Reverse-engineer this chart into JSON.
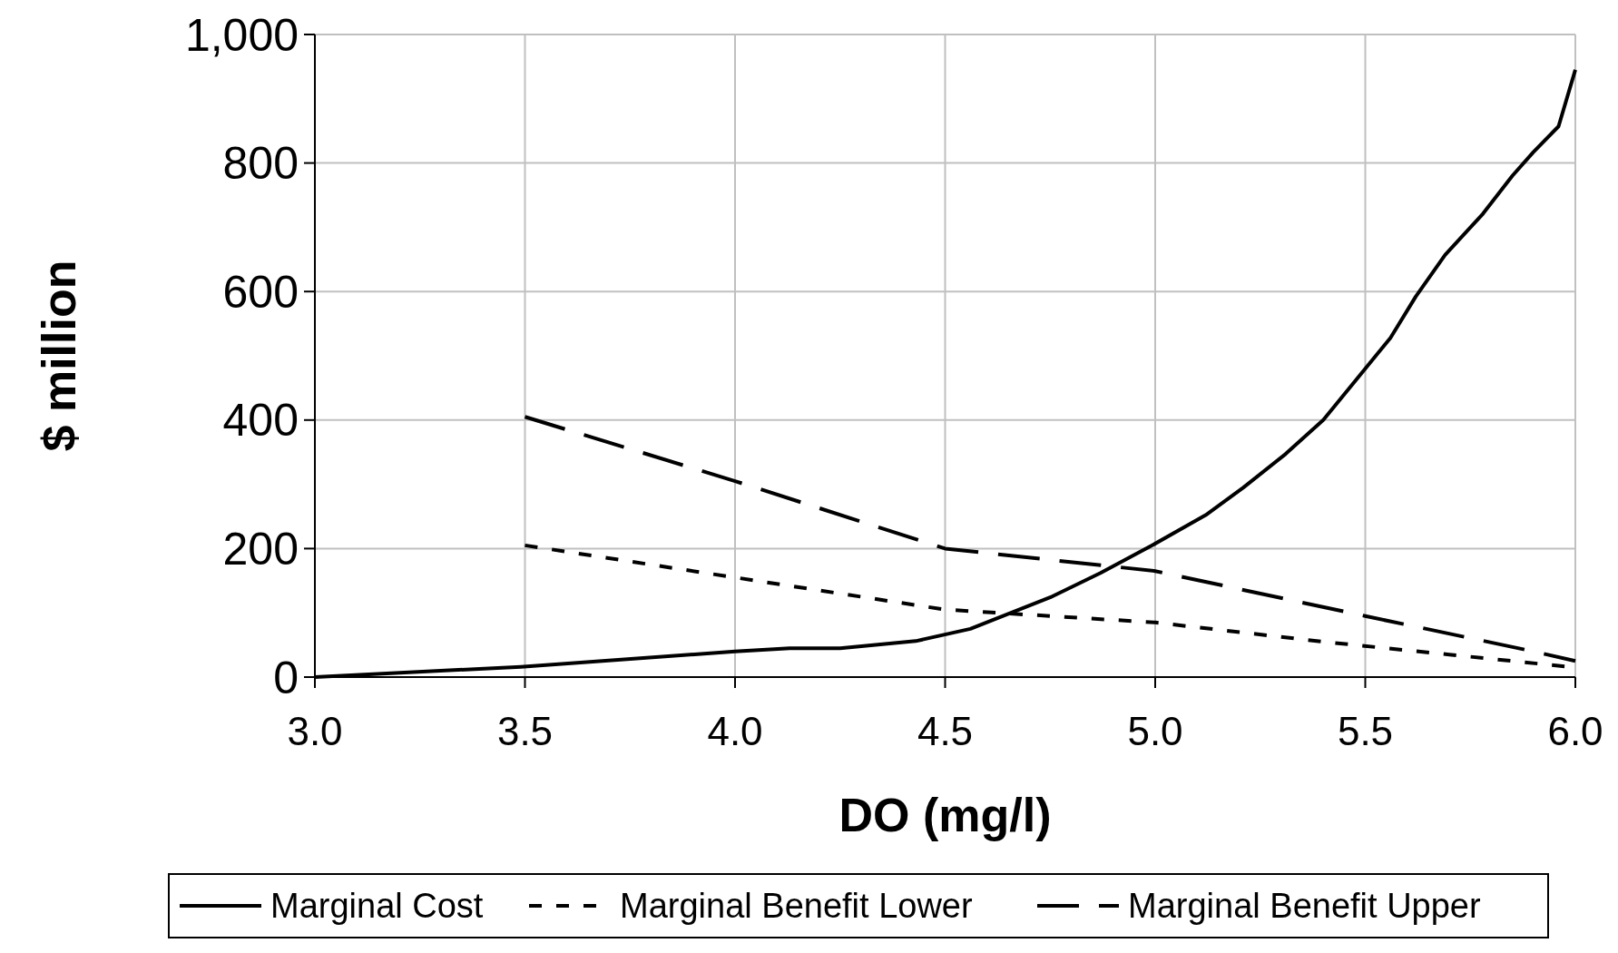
{
  "chart_data": {
    "type": "line",
    "xlabel": "DO (mg/l)",
    "ylabel": "$ million",
    "xlim": [
      3,
      6
    ],
    "ylim": [
      0,
      1000
    ],
    "xticks": [
      {
        "value": 3,
        "label": "3.0"
      },
      {
        "value": 3.5,
        "label": "3.5"
      },
      {
        "value": 4,
        "label": "4.0"
      },
      {
        "value": 4.5,
        "label": "4.5"
      },
      {
        "value": 5,
        "label": "5.0"
      },
      {
        "value": 5.5,
        "label": "5.5"
      },
      {
        "value": 6,
        "label": "6.0"
      }
    ],
    "yticks": [
      0,
      200,
      400,
      600,
      800,
      {
        "value": 1000,
        "label": "1,000"
      }
    ],
    "grid": true,
    "legend": "bottom",
    "series": [
      {
        "name": "Marginal Cost",
        "color": "#000000",
        "line_style": "solid",
        "x": [
          3,
          3.49,
          4,
          4.13,
          4.25,
          4.43,
          4.56,
          4.75,
          4.87,
          4.99,
          5.12,
          5.21,
          5.31,
          5.4,
          5.48,
          5.56,
          5.62,
          5.69,
          5.78,
          5.85,
          5.9,
          5.96,
          6
        ],
        "values": [
          0,
          16,
          40,
          45,
          45,
          56,
          75,
          124,
          162,
          204,
          252,
          295,
          347,
          400,
          464,
          528,
          592,
          657,
          721,
          780,
          817,
          857,
          945
        ]
      },
      {
        "name": "Marginal Benefit Lower",
        "color": "#000000",
        "line_style": "dotted",
        "x": [
          3.5,
          4,
          4.5,
          5,
          5.4,
          5.7,
          6
        ],
        "values": [
          205,
          155,
          105,
          85,
          55,
          35,
          15
        ]
      },
      {
        "name": "Marginal Benefit Upper",
        "color": "#000000",
        "line_style": "dashed",
        "x": [
          3.5,
          4,
          4.5,
          5,
          5.5,
          5.9,
          6
        ],
        "values": [
          405,
          305,
          200,
          165,
          95,
          40,
          25
        ]
      }
    ]
  }
}
